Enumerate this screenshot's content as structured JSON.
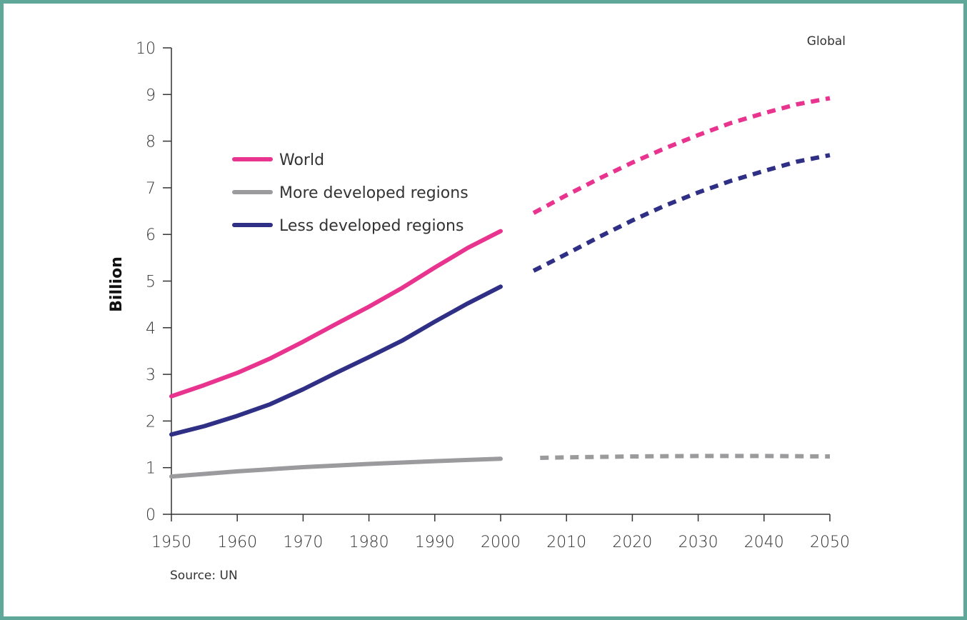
{
  "region_label": "Global",
  "source": "Source: UN",
  "colors": {
    "frame": "#5fa899",
    "axis": "#333333"
  },
  "chart_data": {
    "type": "line",
    "ylabel": "Billion",
    "xlabel": "",
    "xlim": [
      1950,
      2050
    ],
    "ylim": [
      0,
      10
    ],
    "x_ticks": [
      "1950",
      "1960",
      "1970",
      "1980",
      "1990",
      "2000",
      "2010",
      "2020",
      "2030",
      "2040",
      "2050"
    ],
    "y_ticks": [
      "0",
      "1",
      "2",
      "3",
      "4",
      "5",
      "6",
      "7",
      "8",
      "9",
      "10"
    ],
    "legend_position": "upper-left",
    "grid": false,
    "series": [
      {
        "name": "World",
        "color": "#e8338f",
        "estimates": {
          "x": [
            1950,
            1955,
            1960,
            1965,
            1970,
            1975,
            1980,
            1985,
            1990,
            1995,
            2000
          ],
          "y": [
            2.53,
            2.77,
            3.03,
            3.34,
            3.7,
            4.08,
            4.45,
            4.85,
            5.29,
            5.71,
            6.07
          ]
        },
        "projections": {
          "x": [
            2005,
            2010,
            2015,
            2020,
            2025,
            2030,
            2035,
            2040,
            2045,
            2050
          ],
          "y": [
            6.46,
            6.84,
            7.2,
            7.54,
            7.85,
            8.13,
            8.39,
            8.6,
            8.79,
            8.92
          ]
        }
      },
      {
        "name": "More developed regions",
        "color": "#9b9b9e",
        "estimates": {
          "x": [
            1950,
            1960,
            1970,
            1980,
            1990,
            2000
          ],
          "y": [
            0.81,
            0.92,
            1.01,
            1.08,
            1.14,
            1.19
          ]
        },
        "projections": {
          "x": [
            2006,
            2010,
            2020,
            2030,
            2040,
            2050
          ],
          "y": [
            1.21,
            1.22,
            1.24,
            1.25,
            1.25,
            1.24
          ]
        }
      },
      {
        "name": "Less developed regions",
        "color": "#2f2f86",
        "estimates": {
          "x": [
            1950,
            1955,
            1960,
            1965,
            1970,
            1975,
            1980,
            1985,
            1990,
            1995,
            2000
          ],
          "y": [
            1.71,
            1.89,
            2.11,
            2.36,
            2.68,
            3.03,
            3.37,
            3.72,
            4.13,
            4.52,
            4.88
          ]
        },
        "projections": {
          "x": [
            2005,
            2010,
            2015,
            2020,
            2025,
            2030,
            2035,
            2040,
            2045,
            2050
          ],
          "y": [
            5.22,
            5.58,
            5.95,
            6.3,
            6.62,
            6.9,
            7.15,
            7.36,
            7.56,
            7.7
          ]
        }
      }
    ]
  }
}
